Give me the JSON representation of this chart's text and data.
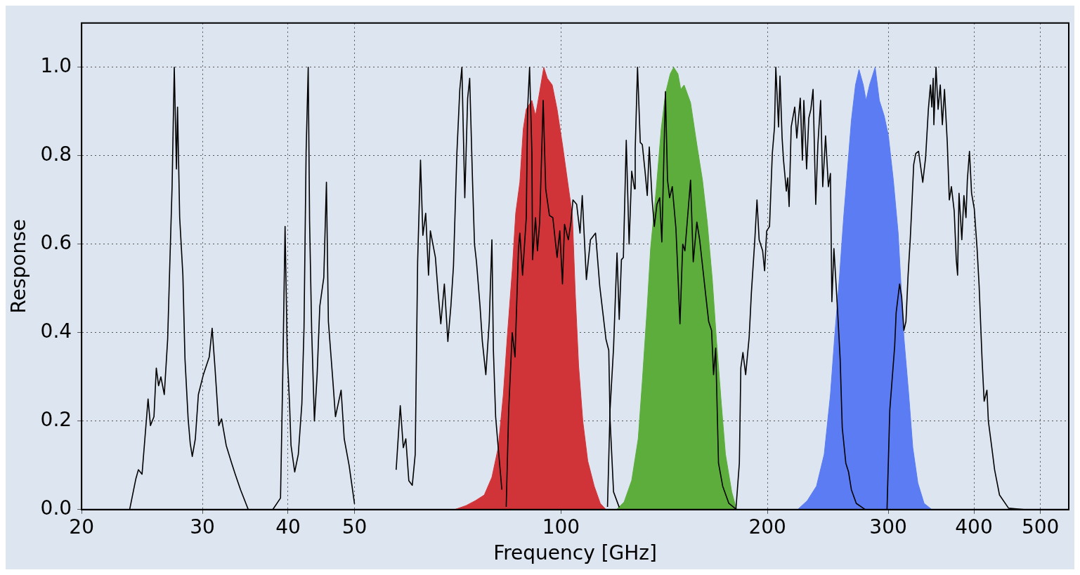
{
  "chart_data": {
    "type": "line",
    "xlabel": "Frequency [GHz]",
    "ylabel": "Response",
    "log": "x",
    "grid": true,
    "legend": false,
    "xlim": [
      20,
      550
    ],
    "xticks": [
      20,
      30,
      40,
      50,
      100,
      200,
      300,
      400,
      500
    ],
    "ylim": [
      0,
      1.1
    ],
    "yticks": [
      {
        "value": 0,
        "label": "0.0"
      },
      0.2,
      0.4,
      0.6,
      0.8,
      {
        "value": 1,
        "label": "1.0"
      }
    ],
    "series": [
      {
        "type": "area",
        "color": "#d13438",
        "x": [
          70.0,
          72.7,
          75.0,
          77.3,
          79.3,
          81.0,
          82.4,
          83.5,
          84.9,
          85.9,
          87.1,
          88.1,
          89.0,
          90.7,
          91.8,
          93.1,
          94.4,
          95.5,
          97.1,
          98.7,
          100.5,
          102.5,
          103.9,
          104.9,
          106.1,
          107.6,
          109.4,
          111.8,
          114.1,
          116.3
        ],
        "values": [
          0,
          0.009,
          0.02,
          0.033,
          0.073,
          0.14,
          0.26,
          0.39,
          0.54,
          0.67,
          0.74,
          0.86,
          0.905,
          0.925,
          0.89,
          0.945,
          1.0,
          0.975,
          0.96,
          0.905,
          0.825,
          0.73,
          0.665,
          0.49,
          0.325,
          0.2,
          0.11,
          0.053,
          0.014,
          0
        ]
      },
      {
        "type": "area",
        "color": "#5dad3d",
        "x": [
          120.5,
          123.6,
          126.8,
          129.6,
          131.4,
          133.6,
          135.1,
          137.7,
          140.0,
          142.0,
          144.3,
          146.0,
          148.1,
          149.5,
          151.2,
          154.5,
          157.8,
          160.8,
          163.4,
          166.2,
          168.5,
          171.3,
          173.7,
          177.4,
          180.3
        ],
        "values": [
          0,
          0.017,
          0.066,
          0.16,
          0.29,
          0.46,
          0.59,
          0.725,
          0.86,
          0.94,
          0.985,
          1.0,
          0.985,
          0.95,
          0.96,
          0.92,
          0.825,
          0.745,
          0.65,
          0.52,
          0.385,
          0.24,
          0.125,
          0.04,
          0
        ]
      },
      {
        "type": "area",
        "color": "#5b7cf2",
        "x": [
          221.3,
          228.6,
          235.8,
          242.0,
          247.1,
          250.6,
          254.7,
          258.3,
          261.4,
          265.1,
          268.8,
          272.0,
          275.9,
          278.5,
          281.8,
          287.1,
          291.2,
          296.0,
          300.2,
          305.2,
          310.2,
          316.2,
          321.4,
          325.8,
          331.4,
          338.4,
          347.3
        ],
        "values": [
          0,
          0.02,
          0.053,
          0.125,
          0.26,
          0.39,
          0.525,
          0.66,
          0.76,
          0.88,
          0.96,
          0.995,
          0.96,
          0.925,
          0.96,
          1.0,
          0.925,
          0.89,
          0.845,
          0.745,
          0.625,
          0.39,
          0.26,
          0.14,
          0.06,
          0.014,
          0
        ]
      },
      {
        "type": "line",
        "color": "#000000",
        "x": [
          22.5,
          23.5,
          24.0,
          24.2,
          24.5,
          25.0,
          25.2,
          25.5,
          25.7,
          25.9,
          26.1,
          26.4,
          26.7,
          26.9,
          27.1,
          27.3,
          27.5,
          27.6,
          27.8,
          28.1,
          28.3,
          28.6,
          28.8,
          29.0,
          29.3,
          29.6,
          30.1,
          30.7,
          31.0,
          31.3,
          31.7,
          32.0,
          32.5,
          33.1,
          33.5,
          34.1,
          35.0,
          36.0
        ],
        "values": [
          0,
          0,
          0.07,
          0.09,
          0.08,
          0.25,
          0.19,
          0.21,
          0.32,
          0.28,
          0.3,
          0.26,
          0.385,
          0.56,
          0.73,
          1.0,
          0.77,
          0.91,
          0.66,
          0.53,
          0.34,
          0.205,
          0.15,
          0.12,
          0.16,
          0.26,
          0.305,
          0.345,
          0.41,
          0.32,
          0.19,
          0.205,
          0.145,
          0.105,
          0.08,
          0.045,
          0,
          0
        ]
      },
      {
        "type": "line",
        "color": "#000000",
        "x": [
          38.0,
          39.0,
          39.3,
          39.6,
          39.9,
          40.2,
          40.4,
          40.9,
          41.4,
          41.9,
          42.2,
          42.5,
          42.8,
          43.0,
          43.3,
          43.7,
          44.1,
          44.5,
          45.1,
          45.5,
          45.8,
          46.5,
          46.9,
          47.8,
          48.3,
          49.1,
          50.0
        ],
        "values": [
          0,
          0.026,
          0.31,
          0.64,
          0.345,
          0.24,
          0.145,
          0.085,
          0.125,
          0.24,
          0.41,
          0.81,
          1.0,
          0.65,
          0.405,
          0.2,
          0.305,
          0.46,
          0.525,
          0.74,
          0.425,
          0.29,
          0.21,
          0.27,
          0.16,
          0.1,
          0.013
        ]
      },
      {
        "type": "line",
        "color": "#000000",
        "x": [
          57.5,
          58.3,
          58.9,
          59.4,
          60.0,
          60.7,
          61.3,
          61.8,
          62.4,
          62.9,
          63.5,
          64.1,
          64.5,
          65.6,
          66.2,
          66.8,
          67.6,
          68.4,
          69.1,
          69.7,
          70.5,
          71.2,
          71.7,
          72.4,
          73.1,
          73.6,
          74.3,
          74.8,
          75.3,
          76.2,
          76.8,
          77.7,
          78.6,
          79.3,
          79.7,
          80.3,
          81.0,
          82.0
        ],
        "values": [
          0.09,
          0.235,
          0.14,
          0.16,
          0.065,
          0.055,
          0.125,
          0.56,
          0.79,
          0.62,
          0.67,
          0.53,
          0.63,
          0.57,
          0.49,
          0.42,
          0.51,
          0.38,
          0.46,
          0.55,
          0.805,
          0.95,
          1.0,
          0.705,
          0.93,
          0.975,
          0.745,
          0.6,
          0.56,
          0.46,
          0.38,
          0.305,
          0.425,
          0.61,
          0.36,
          0.21,
          0.14,
          0.045
        ]
      },
      {
        "type": "line",
        "color": "#000000",
        "x": [
          83.2,
          83.9,
          84.9,
          85.7,
          86.7,
          87.1,
          87.9,
          89.0,
          89.4,
          90.0,
          90.7,
          90.9,
          91.8,
          92.4,
          93.1,
          94.2,
          95.0,
          96.2,
          97.3,
          98.7,
          99.6,
          100.5,
          101.2,
          102.5,
          103.4,
          104.1,
          105.4,
          106.6,
          107.4,
          108.9,
          110.4,
          112.3,
          113.9,
          115.2,
          116.3,
          117.4,
          117.9,
          119.3,
          121.6
        ],
        "values": [
          0.006,
          0.225,
          0.4,
          0.345,
          0.59,
          0.625,
          0.53,
          0.66,
          0.905,
          1.0,
          0.805,
          0.565,
          0.66,
          0.585,
          0.65,
          0.925,
          0.725,
          0.665,
          0.66,
          0.57,
          0.63,
          0.51,
          0.645,
          0.61,
          0.65,
          0.7,
          0.69,
          0.625,
          0.71,
          0.52,
          0.61,
          0.625,
          0.505,
          0.44,
          0.385,
          0.36,
          0.205,
          0.04,
          0.005
        ]
      },
      {
        "type": "line",
        "color": "#000000",
        "x": [
          116.9,
          117.9,
          119.3,
          120.2,
          120.7,
          121.6,
          122.5,
          123.3,
          124.5,
          125.7,
          126.8,
          128.0,
          128.3,
          129.3,
          130.5,
          131.4,
          132.6,
          133.6,
          134.5,
          135.8,
          136.8,
          138.0,
          139.3,
          140.3,
          142.0,
          143.0,
          144.0,
          145.3,
          147.1,
          148.1,
          149.1,
          150.5,
          151.6,
          154.5,
          155.9,
          157.8,
          159.3,
          162.7,
          164.2,
          165.8,
          166.9,
          168.1,
          169.7,
          172.1,
          175.7,
          180.3
        ],
        "values": [
          0.006,
          0.225,
          0.365,
          0.505,
          0.58,
          0.43,
          0.565,
          0.57,
          0.835,
          0.6,
          0.765,
          0.725,
          0.815,
          1.0,
          0.83,
          0.825,
          0.765,
          0.71,
          0.82,
          0.7,
          0.64,
          0.69,
          0.705,
          0.605,
          0.945,
          0.745,
          0.705,
          0.73,
          0.635,
          0.53,
          0.42,
          0.6,
          0.585,
          0.745,
          0.56,
          0.65,
          0.61,
          0.48,
          0.425,
          0.405,
          0.305,
          0.365,
          0.105,
          0.053,
          0.014,
          0
        ]
      },
      {
        "type": "line",
        "color": "#000000",
        "x": [
          179.9,
          182.0,
          182.9,
          184.2,
          185.9,
          188.1,
          189.5,
          191.7,
          193.1,
          194.5,
          196.8,
          198.1,
          199.5,
          201.4,
          203.3,
          204.8,
          205.7,
          207.6,
          208.6,
          210.1,
          211.1,
          213.1,
          214.1,
          215.1,
          216.6,
          219.2,
          220.7,
          223.3,
          224.9,
          226.0,
          228.1,
          229.8,
          231.4,
          233.1,
          235.2,
          236.9,
          239.1,
          240.8,
          243.1,
          245.4,
          247.1,
          248.3,
          250.0,
          251.8,
          253.6,
          255.3,
          257.1,
          260.2,
          262.6,
          265.1,
          269.5,
          277.8
        ],
        "values": [
          0,
          0.105,
          0.32,
          0.355,
          0.305,
          0.39,
          0.49,
          0.61,
          0.7,
          0.61,
          0.585,
          0.54,
          0.63,
          0.64,
          0.805,
          0.865,
          1.0,
          0.865,
          0.98,
          0.84,
          0.79,
          0.72,
          0.75,
          0.685,
          0.865,
          0.91,
          0.84,
          0.93,
          0.79,
          0.925,
          0.77,
          0.885,
          0.905,
          0.95,
          0.69,
          0.825,
          0.925,
          0.73,
          0.845,
          0.73,
          0.76,
          0.47,
          0.59,
          0.51,
          0.425,
          0.34,
          0.185,
          0.105,
          0.085,
          0.045,
          0.014,
          0
        ]
      },
      {
        "type": "line",
        "color": "#000000",
        "x": [
          298.8,
          301.6,
          306.6,
          308.1,
          311.7,
          313.9,
          316.2,
          318.4,
          320.7,
          323.0,
          324.5,
          326.8,
          329.1,
          332.2,
          336.9,
          340.1,
          343.3,
          345.7,
          347.3,
          348.9,
          349.7,
          352.2,
          354.7,
          357.3,
          359.8,
          362.4,
          365.8,
          368.3,
          370.9,
          374.4,
          377.0,
          378.7,
          380.5,
          384.1,
          386.8,
          389.5,
          391.3,
          394.1,
          396.9,
          400.5,
          404.3,
          407.1,
          411.1,
          414.0,
          417.9,
          419.9,
          424.8,
          428.8,
          435.9,
          449.4,
          473.3
        ],
        "values": [
          0,
          0.225,
          0.37,
          0.445,
          0.51,
          0.48,
          0.405,
          0.425,
          0.53,
          0.61,
          0.675,
          0.78,
          0.805,
          0.81,
          0.74,
          0.795,
          0.905,
          0.96,
          0.91,
          0.975,
          0.87,
          1.0,
          0.905,
          0.96,
          0.87,
          0.95,
          0.83,
          0.7,
          0.73,
          0.675,
          0.565,
          0.53,
          0.715,
          0.61,
          0.71,
          0.66,
          0.745,
          0.81,
          0.715,
          0.68,
          0.59,
          0.505,
          0.34,
          0.245,
          0.27,
          0.2,
          0.14,
          0.09,
          0.033,
          0.003,
          0
        ]
      }
    ]
  }
}
